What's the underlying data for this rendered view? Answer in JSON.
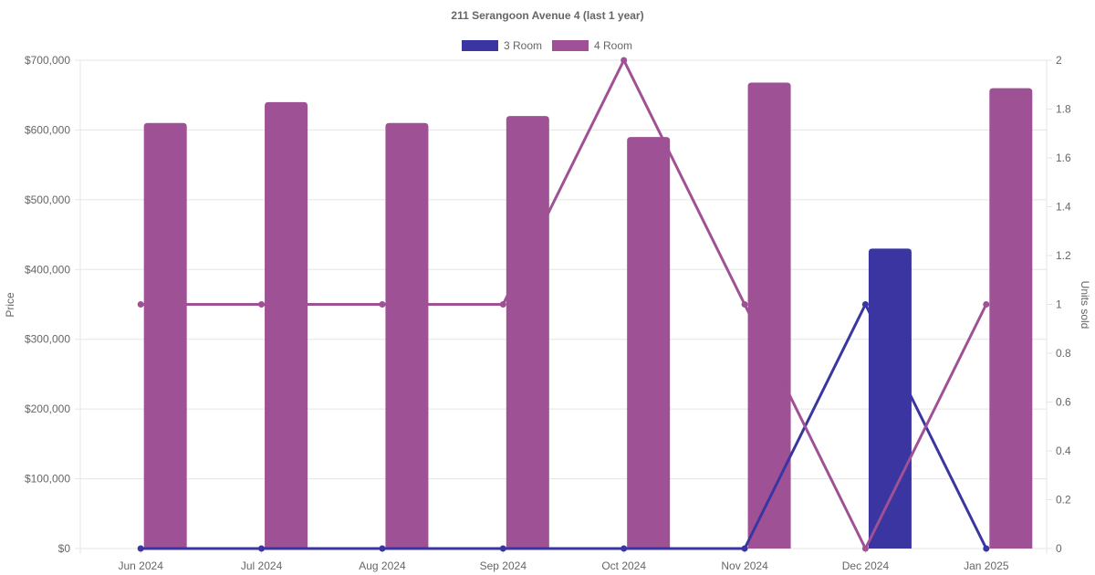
{
  "chart_data": {
    "type": "bar",
    "title": "211 Serangoon Avenue 4 (last 1 year)",
    "categories": [
      "Jun 2024",
      "Jul 2024",
      "Aug 2024",
      "Sep 2024",
      "Oct 2024",
      "Nov 2024",
      "Dec 2024",
      "Jan 2025"
    ],
    "left_axis": {
      "label": "Price",
      "range": [
        0,
        700000
      ],
      "ticks": [
        "$0",
        "$100,000",
        "$200,000",
        "$300,000",
        "$400,000",
        "$500,000",
        "$600,000",
        "$700,000"
      ]
    },
    "right_axis": {
      "label": "Units sold",
      "range": [
        0,
        2
      ],
      "ticks": [
        "0",
        "0.2",
        "0.4",
        "0.6",
        "0.8",
        "1",
        "1.2",
        "1.4",
        "1.6",
        "1.8",
        "2"
      ]
    },
    "legend": {
      "position": "top"
    },
    "grid": true,
    "series": [
      {
        "name": "3 Room",
        "color": "#3a35a1",
        "price": [
          null,
          null,
          null,
          null,
          null,
          null,
          430000,
          null
        ],
        "units_sold": [
          0,
          0,
          0,
          0,
          0,
          0,
          1,
          0
        ]
      },
      {
        "name": "4 Room",
        "color": "#9e5194",
        "price": [
          610000,
          640000,
          610000,
          620000,
          590000,
          668000,
          null,
          660000
        ],
        "units_sold": [
          1,
          1,
          1,
          1,
          2,
          1,
          0,
          1
        ]
      }
    ]
  }
}
